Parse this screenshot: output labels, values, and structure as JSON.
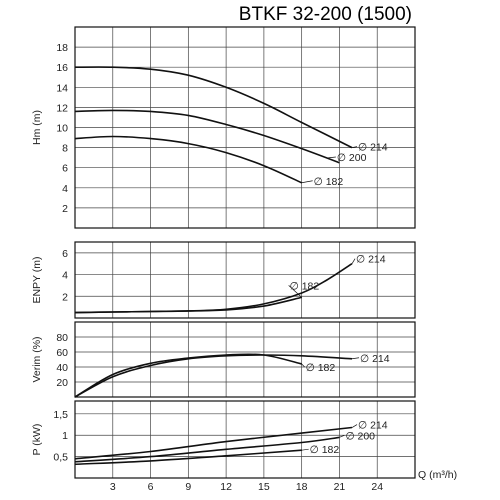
{
  "chart_data": {
    "type": "line",
    "title": "BTKF 32-200 (1500)",
    "xlabel": "Q (m³/h)",
    "xlim": [
      0,
      27
    ],
    "x_ticks": [
      "3",
      "6",
      "9",
      "12",
      "15",
      "18",
      "21",
      "24"
    ],
    "panels": [
      {
        "id": "head",
        "ylabel": "Hm (m)",
        "ylim": [
          0,
          20
        ],
        "y_ticks": [
          "2",
          "4",
          "6",
          "8",
          "10",
          "12",
          "14",
          "16",
          "18"
        ],
        "series": [
          {
            "name": "∅ 214",
            "x": [
              0,
              3,
              6,
              9,
              12,
              15,
              18,
              22
            ],
            "y": [
              16,
              16,
              15.8,
              15.2,
              14,
              12.4,
              10.5,
              8
            ]
          },
          {
            "name": "∅ 200",
            "x": [
              0,
              3,
              6,
              9,
              12,
              15,
              18,
              21
            ],
            "y": [
              11.6,
              11.7,
              11.6,
              11.2,
              10.3,
              9.2,
              7.9,
              6.5
            ]
          },
          {
            "name": "∅ 182",
            "x": [
              0,
              3,
              6,
              9,
              12,
              15,
              18
            ],
            "y": [
              8.9,
              9.1,
              8.9,
              8.4,
              7.5,
              6.2,
              4.5
            ]
          }
        ]
      },
      {
        "id": "npsh",
        "ylabel": "ENPY (m)",
        "ylim": [
          0,
          7
        ],
        "y_ticks": [
          "2",
          "4",
          "6"
        ],
        "series": [
          {
            "name": "∅ 214",
            "x": [
              0,
              3,
              6,
              9,
              12,
              15,
              18,
              20,
              22
            ],
            "y": [
              0.5,
              0.55,
              0.6,
              0.65,
              0.8,
              1.3,
              2.3,
              3.5,
              5
            ]
          },
          {
            "name": "∅ 182",
            "x": [
              0,
              3,
              6,
              9,
              12,
              15,
              18
            ],
            "y": [
              0.5,
              0.55,
              0.6,
              0.65,
              0.75,
              1.1,
              1.9
            ]
          }
        ]
      },
      {
        "id": "efficiency",
        "ylabel": "Verim (%)",
        "ylim": [
          0,
          100
        ],
        "y_ticks": [
          "20",
          "40",
          "60",
          "80"
        ],
        "series": [
          {
            "name": "∅ 214",
            "x": [
              0,
              3,
              6,
              9,
              12,
              15,
              18,
              22
            ],
            "y": [
              0,
              27,
              42,
              51,
              55,
              56,
              55,
              51
            ]
          },
          {
            "name": "∅ 182",
            "x": [
              0,
              3,
              6,
              9,
              12,
              15,
              18
            ],
            "y": [
              0,
              30,
              45,
              52,
              56,
              56,
              44
            ]
          }
        ]
      },
      {
        "id": "power",
        "ylabel": "P (kW)",
        "ylim": [
          0,
          1.8
        ],
        "y_ticks": [
          "0,5",
          "1",
          "1,5"
        ],
        "series": [
          {
            "name": "∅ 214",
            "x": [
              0,
              6,
              12,
              18,
              22
            ],
            "y": [
              0.45,
              0.62,
              0.85,
              1.05,
              1.18
            ]
          },
          {
            "name": "∅ 200",
            "x": [
              0,
              6,
              12,
              18,
              21
            ],
            "y": [
              0.38,
              0.5,
              0.67,
              0.83,
              0.95
            ]
          },
          {
            "name": "∅ 182",
            "x": [
              0,
              6,
              12,
              18
            ],
            "y": [
              0.32,
              0.4,
              0.52,
              0.65
            ]
          }
        ]
      }
    ]
  }
}
